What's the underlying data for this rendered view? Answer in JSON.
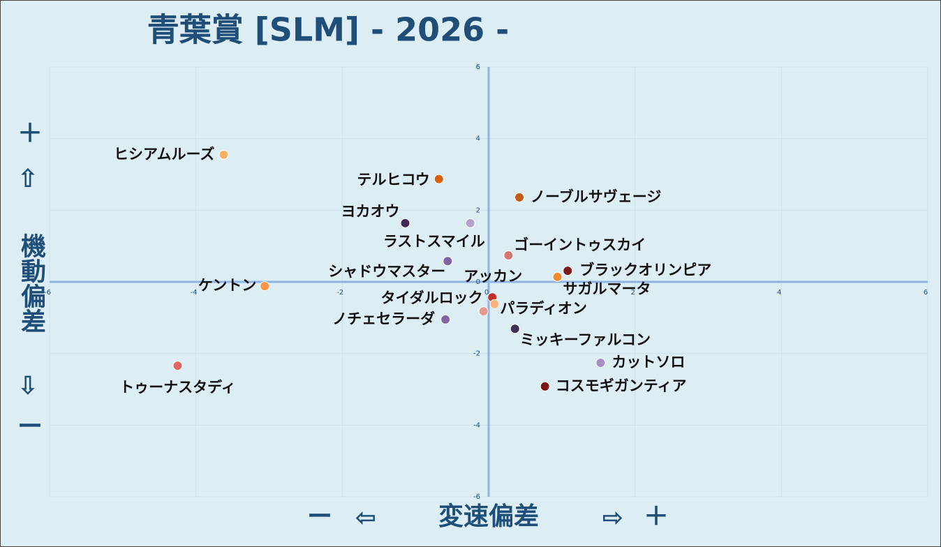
{
  "chart_data": {
    "type": "scatter",
    "title": "青葉賞 [SLM]  - 2026 -",
    "xlabel": "変速偏差",
    "ylabel": "機動偏差",
    "x_arrows": [
      "ー",
      "⇦",
      "⇨",
      "＋"
    ],
    "y_arrows": [
      "＋",
      "⇧",
      "⇩",
      "ー"
    ],
    "xlim": [
      -6,
      6
    ],
    "ylim": [
      -6,
      6
    ],
    "xticks": [
      -6,
      -4,
      -2,
      0,
      2,
      4,
      6
    ],
    "yticks": [
      -6,
      -4,
      -2,
      0,
      2,
      4,
      6
    ],
    "grid": true,
    "series": [
      {
        "name": "ヒシアムルーズ",
        "color": "#f6b26b",
        "x": [
          -3.62
        ],
        "values": [
          3.55
        ]
      },
      {
        "name": "テルヒコウ",
        "color": "#d9600b",
        "x": [
          -0.68
        ],
        "values": [
          2.87
        ]
      },
      {
        "name": "ノーブルサヴェージ",
        "color": "#c55a11",
        "x": [
          0.42
        ],
        "values": [
          2.36
        ]
      },
      {
        "name": "ヨカオウ",
        "color": "#3f2a56",
        "x": [
          -1.14
        ],
        "values": [
          1.64
        ]
      },
      {
        "name": "ラストスマイル",
        "color": "#b3a2c7",
        "x": [
          -0.25
        ],
        "values": [
          1.64
        ]
      },
      {
        "name": "ゴーイントゥスカイ",
        "color": "#d8766e",
        "x": [
          0.27
        ],
        "values": [
          0.74
        ]
      },
      {
        "name": "シャドウマスター",
        "color": "#8064a2",
        "x": [
          -0.56
        ],
        "values": [
          0.58
        ]
      },
      {
        "name": "ブラックオリンピア",
        "color": "#7b1c1c",
        "x": [
          1.08
        ],
        "values": [
          0.31
        ]
      },
      {
        "name": "サガルマータ",
        "color": "#f28a2e",
        "x": [
          0.94
        ],
        "values": [
          0.14
        ]
      },
      {
        "name": "ケントン",
        "color": "#f79646",
        "x": [
          -3.06
        ],
        "values": [
          -0.12
        ]
      },
      {
        "name": "アッカン",
        "color": "#c0312b",
        "x": [
          0.05
        ],
        "values": [
          -0.43
        ]
      },
      {
        "name": "パラディオン",
        "color": "#fab37a",
        "x": [
          0.08
        ],
        "values": [
          -0.62
        ]
      },
      {
        "name": "タイダルロック",
        "color": "#e69a8f",
        "x": [
          -0.07
        ],
        "values": [
          -0.82
        ]
      },
      {
        "name": "ノチェセラーダ",
        "color": "#8064a2",
        "x": [
          -0.59
        ],
        "values": [
          -1.05
        ]
      },
      {
        "name": "ミッキーファルコン",
        "color": "#403152",
        "x": [
          0.36
        ],
        "values": [
          -1.31
        ]
      },
      {
        "name": "カットソロ",
        "color": "#a68fc1",
        "x": [
          1.53
        ],
        "values": [
          -2.26
        ]
      },
      {
        "name": "コスモギガンティア",
        "color": "#7b1515",
        "x": [
          0.77
        ],
        "values": [
          -2.92
        ]
      },
      {
        "name": "トゥーナスタディ",
        "color": "#e06666",
        "x": [
          -4.25
        ],
        "values": [
          -2.34
        ]
      }
    ]
  }
}
